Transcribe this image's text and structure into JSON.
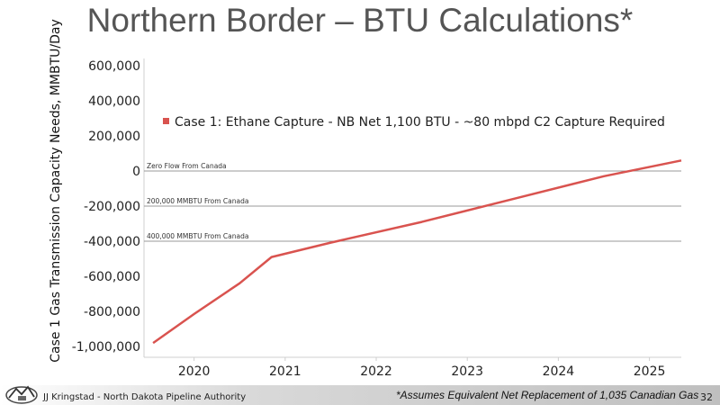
{
  "slide": {
    "title": "Northern Border – BTU Calculations*",
    "footer_author": "JJ Kringstad - North Dakota Pipeline Authority",
    "footnote": "*Assumes Equivalent Net Replacement of 1,035 Canadian Gas",
    "page_number": "32"
  },
  "chart_data": {
    "type": "line",
    "ylabel": "Case 1 Gas Transmission Capacity Needs, MMBTU/Day",
    "xlabel": "",
    "ylim": [
      -1000000,
      600000
    ],
    "xlim": [
      2019.45,
      2025.35
    ],
    "y_ticks": [
      600000,
      400000,
      200000,
      0,
      -200000,
      -400000,
      -600000,
      -800000,
      -1000000
    ],
    "y_tick_labels": [
      "600,000",
      "400,000",
      "200,000",
      "0",
      "-200,000",
      "-400,000",
      "-600,000",
      "-800,000",
      "-1,000,000"
    ],
    "x_ticks": [
      2020,
      2021,
      2022,
      2023,
      2024,
      2025
    ],
    "x_tick_labels": [
      "2020",
      "2021",
      "2022",
      "2023",
      "2024",
      "2025"
    ],
    "grid": false,
    "legend_position": "top",
    "series": [
      {
        "name": "Case 1: Ethane Capture - NB Net 1,100 BTU - ~80 mbpd C2 Capture Required",
        "color": "#d9534f",
        "points": [
          {
            "x": 2019.55,
            "y": -980000
          },
          {
            "x": 2020.0,
            "y": -815000
          },
          {
            "x": 2020.5,
            "y": -640000
          },
          {
            "x": 2020.85,
            "y": -490000
          },
          {
            "x": 2021.5,
            "y": -408000
          },
          {
            "x": 2022.5,
            "y": -290000
          },
          {
            "x": 2023.5,
            "y": -160000
          },
          {
            "x": 2024.5,
            "y": -30000
          },
          {
            "x": 2025.35,
            "y": 60000
          }
        ]
      }
    ],
    "reference_lines": [
      {
        "y": 0,
        "label": "Zero Flow From Canada"
      },
      {
        "y": -200000,
        "label": "200,000 MMBTU From Canada"
      },
      {
        "y": -400000,
        "label": "400,000 MMBTU From Canada"
      }
    ]
  }
}
